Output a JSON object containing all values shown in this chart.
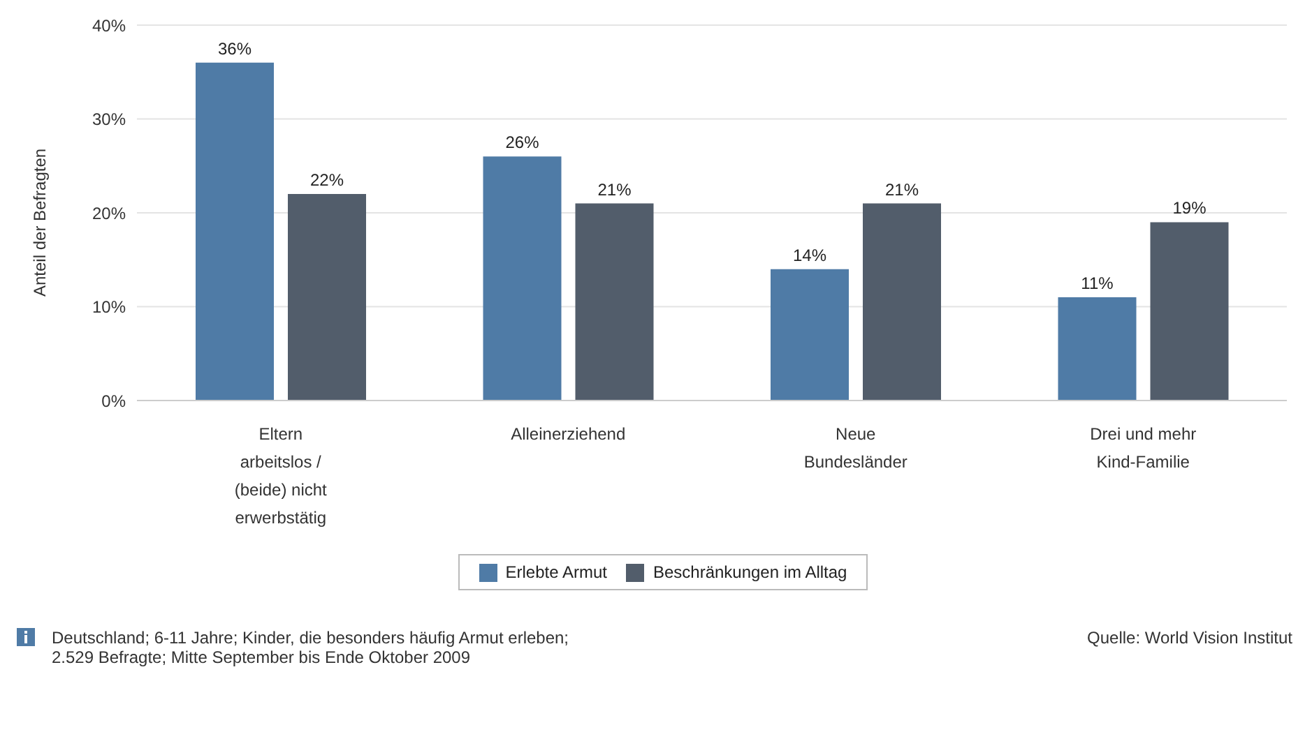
{
  "chart_data": {
    "type": "bar",
    "ylabel": "Anteil der Befragten",
    "categories": [
      "Eltern arbeitslos / (beide) nicht erwerbstätig",
      "Alleinerziehend",
      "Neue Bundesländer",
      "Drei und mehr Kind-Familie"
    ],
    "series": [
      {
        "name": "Erlebte Armut",
        "color": "#4f7ba6",
        "values": [
          36,
          26,
          14,
          11
        ]
      },
      {
        "name": "Beschränkungen im Alltag",
        "color": "#525d6b",
        "values": [
          22,
          21,
          21,
          19
        ]
      }
    ],
    "ylim": [
      0,
      40
    ],
    "yticks": [
      {
        "value": 0,
        "label": "0%"
      },
      {
        "value": 10,
        "label": "10%"
      },
      {
        "value": 20,
        "label": "20%"
      },
      {
        "value": 30,
        "label": "30%"
      },
      {
        "value": 40,
        "label": "40%"
      }
    ],
    "value_labels": [
      [
        "36%",
        "26%",
        "14%",
        "11%"
      ],
      [
        "22%",
        "21%",
        "21%",
        "19%"
      ]
    ],
    "grid": "y",
    "legend": "bottom",
    "annotations": [
      "Deutschland; 6-11 Jahre; Kinder, die besonders häufig Armut erleben; 2.529 Befragte; Mitte September bis Ende Oktober 2009",
      "Quelle: World Vision Institut"
    ]
  }
}
